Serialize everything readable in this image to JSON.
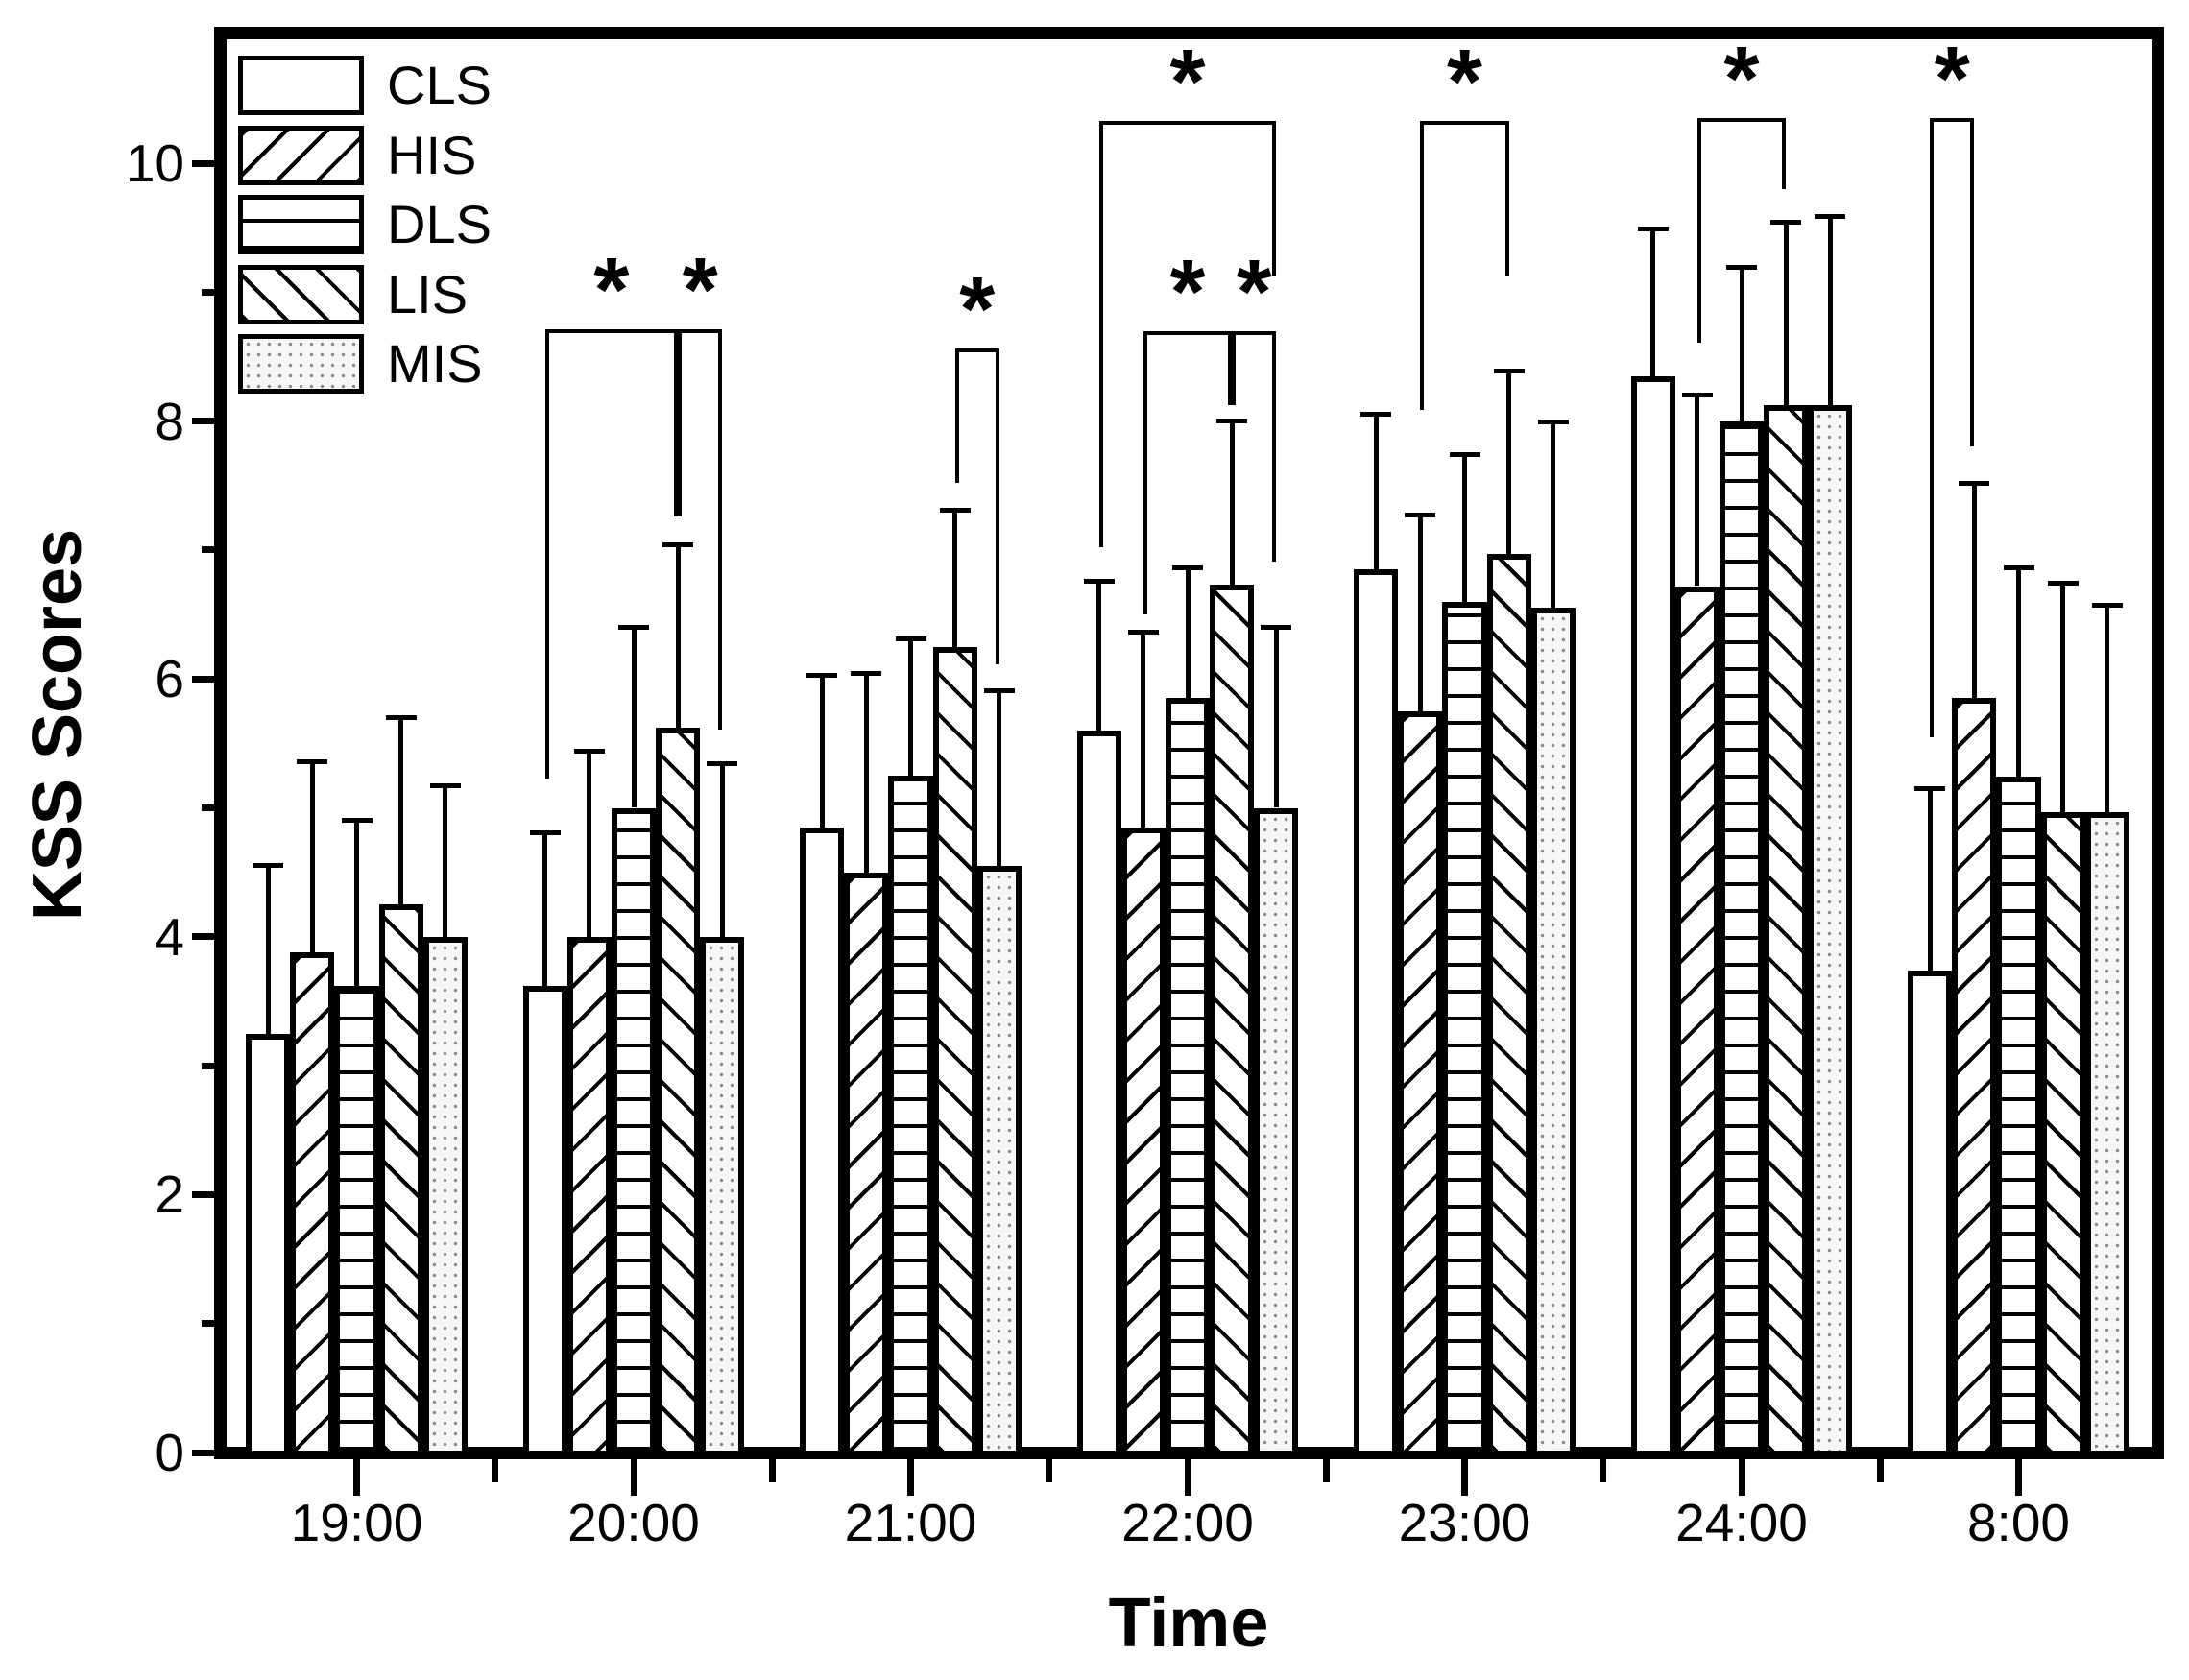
{
  "chart_data": {
    "type": "bar",
    "title": "",
    "xlabel": "Time",
    "ylabel": "KSS Scores",
    "categories": [
      "19:00",
      "20:00",
      "21:00",
      "22:00",
      "23:00",
      "24:00",
      "8:00"
    ],
    "yticks": [
      0,
      2,
      4,
      6,
      8,
      10
    ],
    "yminorticks": [
      1,
      3,
      5,
      7,
      9
    ],
    "ylim": [
      0,
      11
    ],
    "grid": false,
    "legend_position": "top-left-inside",
    "series": [
      {
        "name": "CLS",
        "pattern": "plain-white",
        "values": [
          3.25,
          3.62,
          4.85,
          5.6,
          6.85,
          8.35,
          3.74
        ],
        "errors_plus": [
          1.3,
          1.19,
          1.18,
          1.16,
          1.2,
          1.14,
          1.41
        ]
      },
      {
        "name": "HIS",
        "pattern": "diagonal-forward-hatch",
        "values": [
          3.88,
          4.0,
          4.5,
          4.85,
          5.75,
          6.72,
          5.85
        ],
        "errors_plus": [
          1.48,
          1.44,
          1.54,
          1.51,
          1.52,
          1.48,
          1.67
        ]
      },
      {
        "name": "DLS",
        "pattern": "horizontal-line-hatch",
        "values": [
          3.62,
          5.0,
          5.25,
          5.85,
          6.6,
          8.0,
          5.24
        ],
        "errors_plus": [
          1.28,
          1.4,
          1.06,
          1.01,
          1.14,
          1.19,
          1.62
        ]
      },
      {
        "name": "LIS",
        "pattern": "diagonal-back-hatch",
        "values": [
          4.25,
          5.62,
          6.25,
          6.73,
          6.97,
          8.12,
          4.97
        ],
        "errors_plus": [
          1.45,
          1.42,
          1.06,
          1.27,
          1.42,
          1.42,
          1.77
        ]
      },
      {
        "name": "MIS",
        "pattern": "dot-fill",
        "values": [
          4.0,
          4.0,
          4.55,
          5.0,
          6.55,
          8.12,
          4.97
        ],
        "errors_plus": [
          1.17,
          1.34,
          1.36,
          1.4,
          1.44,
          1.47,
          1.6
        ]
      }
    ],
    "significance": [
      {
        "time": "20:00",
        "between": [
          "CLS",
          "LIS"
        ],
        "bar_y": 8.71,
        "leg_a_y": 5.23,
        "leg_b_y": 7.26,
        "label": "*"
      },
      {
        "time": "20:00",
        "between": [
          "LIS",
          "MIS"
        ],
        "bar_y": 8.71,
        "leg_a_y": 7.26,
        "leg_b_y": 5.61,
        "label": "*"
      },
      {
        "time": "21:00",
        "between": [
          "LIS",
          "MIS"
        ],
        "bar_y": 8.56,
        "leg_a_y": 7.52,
        "leg_b_y": 6.11,
        "label": "*"
      },
      {
        "time": "22:00",
        "between": [
          "CLS",
          "MIS"
        ],
        "bar_y": 10.33,
        "leg_a_y": 7.02,
        "leg_b_y": 9.12,
        "label": "*"
      },
      {
        "time": "22:00",
        "between": [
          "HIS",
          "LIS"
        ],
        "bar_y": 8.7,
        "leg_a_y": 6.5,
        "leg_b_y": 8.12,
        "label": "*"
      },
      {
        "time": "22:00",
        "between": [
          "LIS",
          "MIS"
        ],
        "bar_y": 8.7,
        "leg_a_y": 8.12,
        "leg_b_y": 6.91,
        "label": "*"
      },
      {
        "time": "23:00",
        "between": [
          "HIS",
          "LIS"
        ],
        "bar_y": 10.33,
        "leg_a_y": 8.09,
        "leg_b_y": 9.12,
        "label": "*"
      },
      {
        "time": "24:00",
        "between": [
          "HIS",
          "LIS"
        ],
        "bar_y": 10.35,
        "leg_a_y": 8.61,
        "leg_b_y": 9.8,
        "label": "*"
      },
      {
        "time": "8:00",
        "between": [
          "CLS",
          "HIS"
        ],
        "bar_y": 10.35,
        "leg_a_y": 5.55,
        "leg_b_y": 7.8,
        "label": "*"
      }
    ]
  },
  "colors": {
    "ink": "#000000",
    "background": "#ffffff",
    "dot_fill_bg": "#f6f6f6",
    "dot_color": "#8a8a8a"
  }
}
